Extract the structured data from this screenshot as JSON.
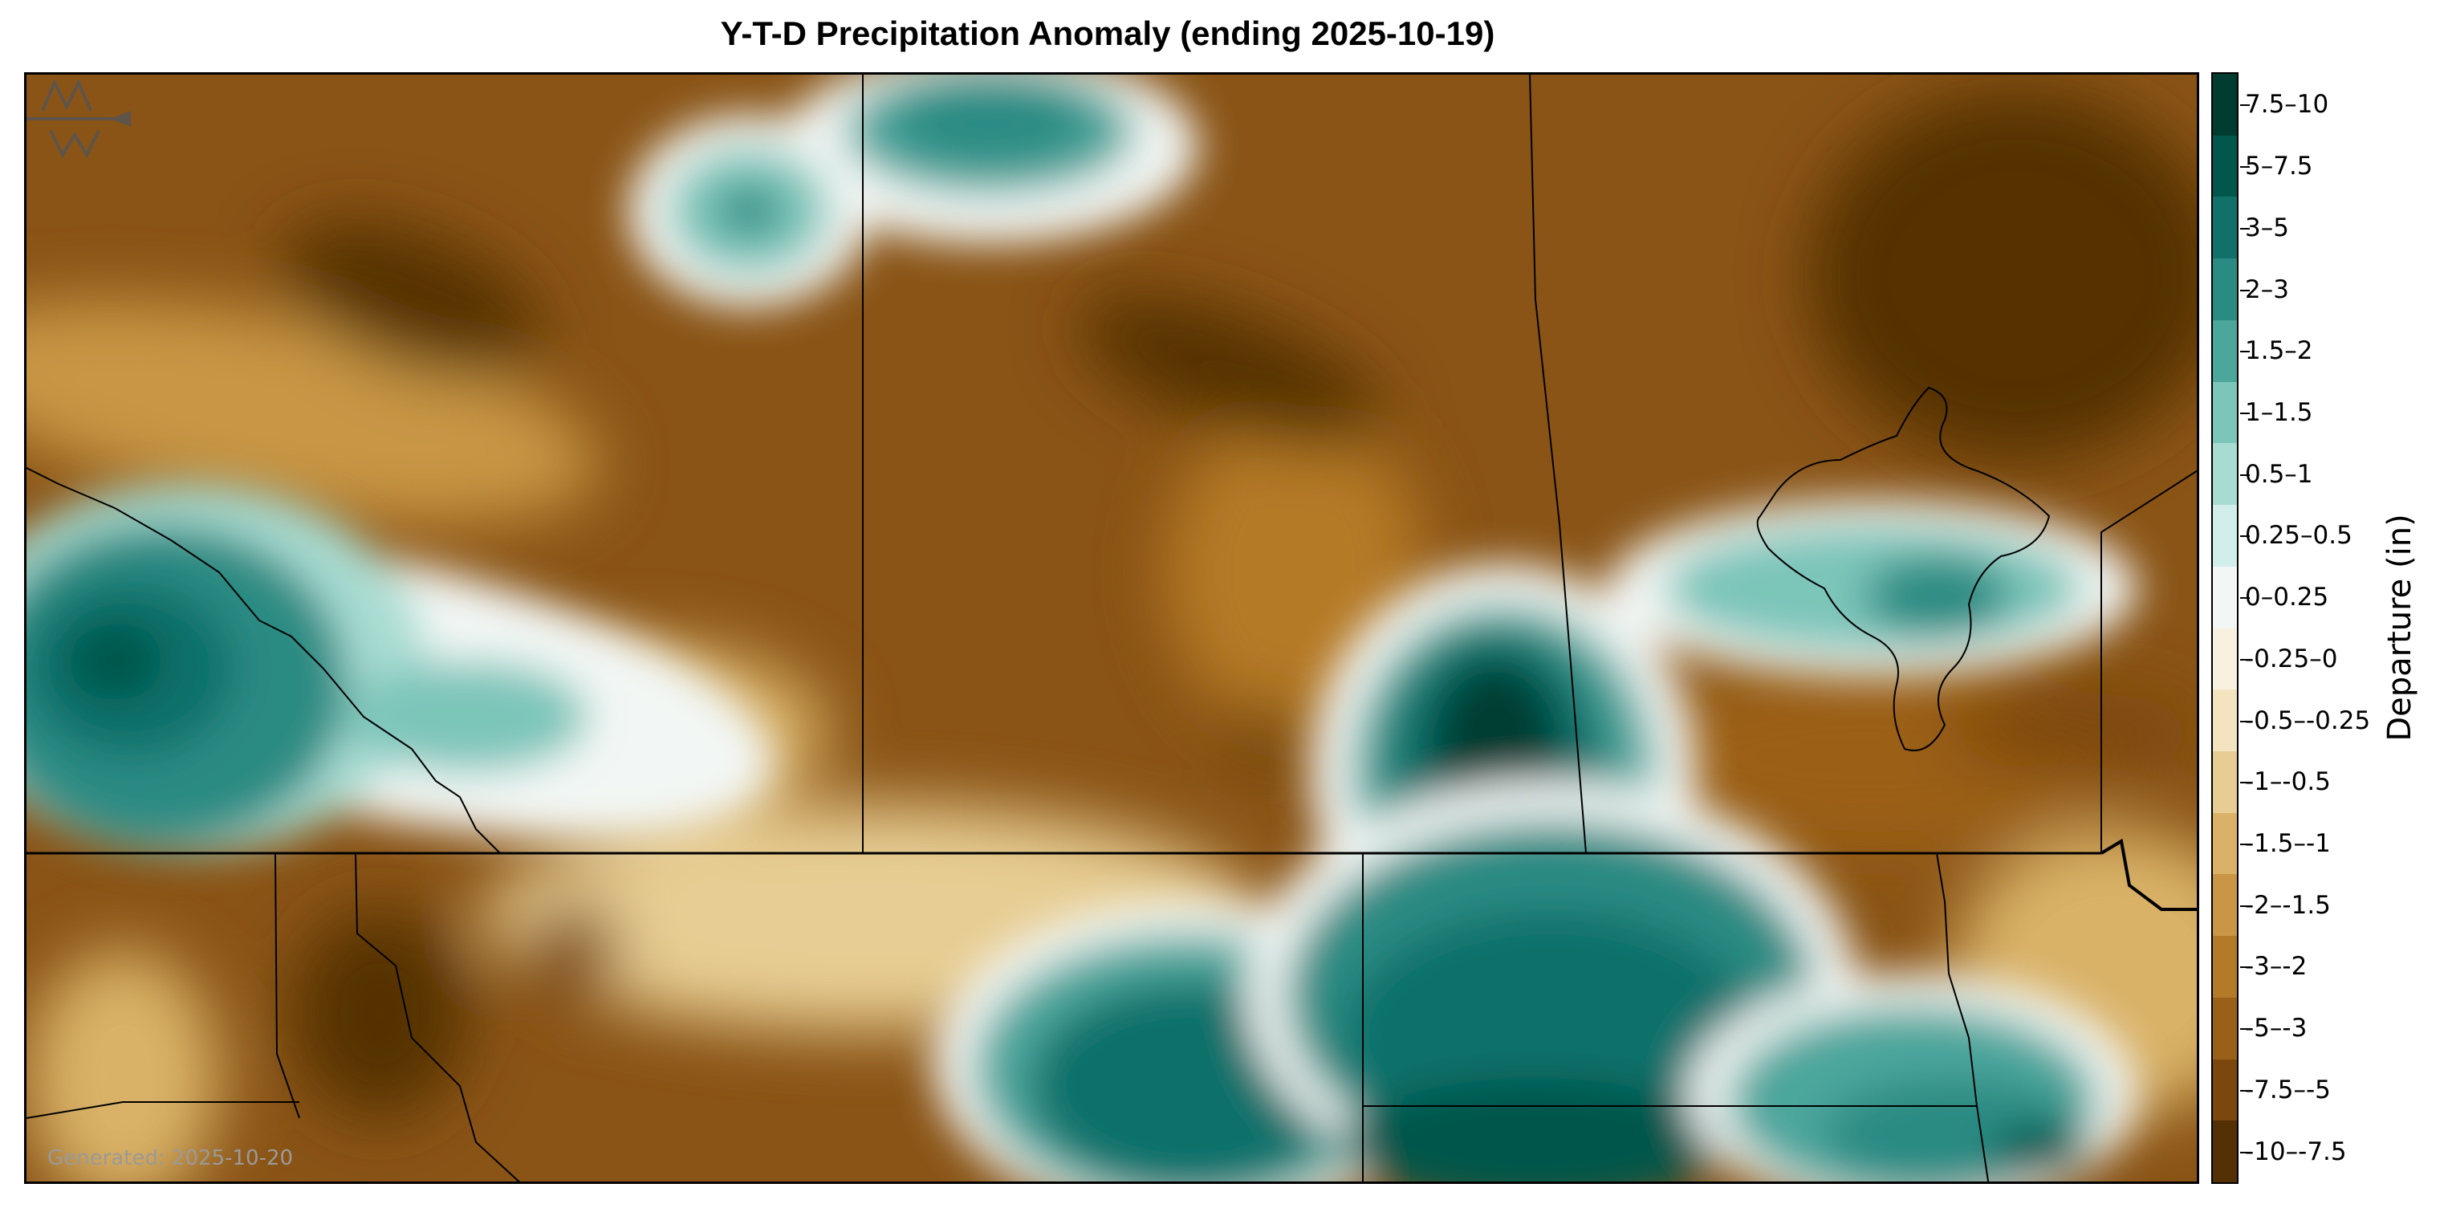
{
  "title": "Y-T-D Precipitation Anomaly (ending 2025-10-19)",
  "generated_text": "Generated: 2025-10-20",
  "colorbar": {
    "title": "Departure (in)",
    "bins": [
      {
        "label": "7.5–10",
        "color": "#003c30"
      },
      {
        "label": "5–7.5",
        "color": "#01574b"
      },
      {
        "label": "3–5",
        "color": "#11716a"
      },
      {
        "label": "2–3",
        "color": "#2a8b83"
      },
      {
        "label": "1.5–2",
        "color": "#4ba69c"
      },
      {
        "label": "1–1.5",
        "color": "#7cc5b9"
      },
      {
        "label": "0.5–1",
        "color": "#a8dcd2"
      },
      {
        "label": "0.25–0.5",
        "color": "#d2eeea"
      },
      {
        "label": "0–0.25",
        "color": "#f2f7f5"
      },
      {
        "label": "-0.25–0",
        "color": "#f8f1e0"
      },
      {
        "label": "-0.5–-0.25",
        "color": "#f3e4bf"
      },
      {
        "label": "-1–-0.5",
        "color": "#e7cd93"
      },
      {
        "label": "-1.5–-1",
        "color": "#d9b268"
      },
      {
        "label": "-2–-1.5",
        "color": "#c89644"
      },
      {
        "label": "-3–-2",
        "color": "#b57a28"
      },
      {
        "label": "-5–-3",
        "color": "#9b6018"
      },
      {
        "label": "-7.5–-5",
        "color": "#7b470d"
      },
      {
        "label": "-10–-7.5",
        "color": "#543005"
      }
    ]
  },
  "logo": {
    "icon": "meteoblue-style-logo",
    "color": "#555555"
  }
}
